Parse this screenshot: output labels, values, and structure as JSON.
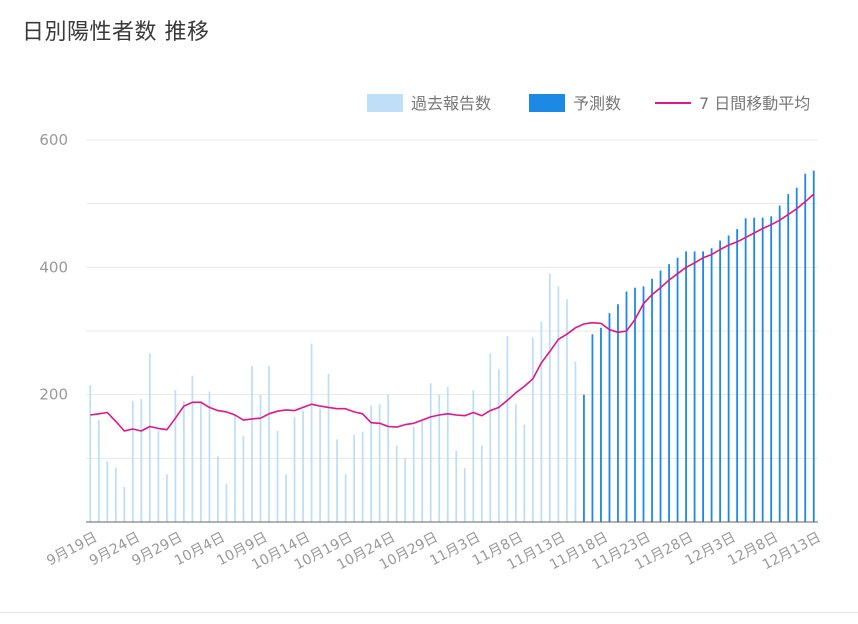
{
  "page": {
    "title": "日別陽性者数 推移"
  },
  "colors": {
    "reported": "#bfdff8",
    "forecast": "#1e88e5",
    "average": "#e0168a",
    "grid": "#e8e8e8",
    "axis": "#999999",
    "tick_text": "#999999",
    "legend_text": "#777777"
  },
  "chart_data": {
    "type": "bar",
    "title": "日別陽性者数 推移",
    "xlabel": "",
    "ylabel": "",
    "ylim": [
      0,
      600
    ],
    "grid": true,
    "legend_position": "top-right",
    "y_ticks": [
      200,
      400,
      600
    ],
    "x_tick_labels": [
      "9月19日",
      "9月24日",
      "9月29日",
      "10月4日",
      "10月9日",
      "10月14日",
      "10月19日",
      "10月24日",
      "10月29日",
      "11月3日",
      "11月8日",
      "11月13日",
      "11月18日",
      "11月23日",
      "11月28日",
      "12月3日",
      "12月8日",
      "12月13日"
    ],
    "start_date": "9月19日",
    "x_tick_every": 5,
    "legend": [
      {
        "key": "reported",
        "label": "過去報告数",
        "kind": "bar"
      },
      {
        "key": "forecast",
        "label": "予測数",
        "kind": "bar"
      },
      {
        "key": "average",
        "label": "7 日間移動平均",
        "kind": "line"
      }
    ],
    "series": [
      {
        "name": "過去報告数",
        "type": "bar",
        "start_index": 0,
        "values": [
          215,
          160,
          95,
          85,
          55,
          190,
          193,
          265,
          143,
          75,
          207,
          190,
          230,
          190,
          205,
          103,
          60,
          168,
          135,
          245,
          200,
          245,
          143,
          75,
          165,
          175,
          280,
          178,
          233,
          130,
          75,
          137,
          142,
          183,
          185,
          200,
          120,
          100,
          150,
          160,
          218,
          200,
          212,
          112,
          85,
          207,
          120,
          265,
          240,
          292,
          185,
          153,
          290,
          315,
          390,
          370,
          350,
          252
        ]
      },
      {
        "name": "予測数",
        "type": "bar",
        "start_index": 58,
        "values": [
          200,
          295,
          305,
          328,
          342,
          362,
          368,
          370,
          382,
          395,
          405,
          415,
          425,
          425,
          425,
          430,
          442,
          450,
          460,
          477,
          478,
          478,
          480,
          497,
          515,
          525,
          547,
          552
        ]
      },
      {
        "name": "7 日間移動平均",
        "type": "line",
        "start_index": 0,
        "values": [
          168,
          170,
          172,
          158,
          143,
          146,
          143,
          150,
          147,
          145,
          163,
          182,
          188,
          188,
          180,
          175,
          173,
          168,
          160,
          162,
          163,
          170,
          174,
          176,
          175,
          180,
          185,
          182,
          180,
          178,
          178,
          173,
          170,
          156,
          155,
          150,
          149,
          153,
          155,
          160,
          165,
          168,
          170,
          168,
          167,
          172,
          167,
          175,
          180,
          191,
          203,
          213,
          225,
          250,
          268,
          287,
          295,
          305,
          311,
          313,
          312,
          302,
          298,
          300,
          318,
          343,
          357,
          368,
          380,
          390,
          400,
          407,
          415,
          420,
          428,
          435,
          440,
          447,
          454,
          461,
          467,
          474,
          483,
          492,
          503,
          515
        ]
      }
    ]
  }
}
